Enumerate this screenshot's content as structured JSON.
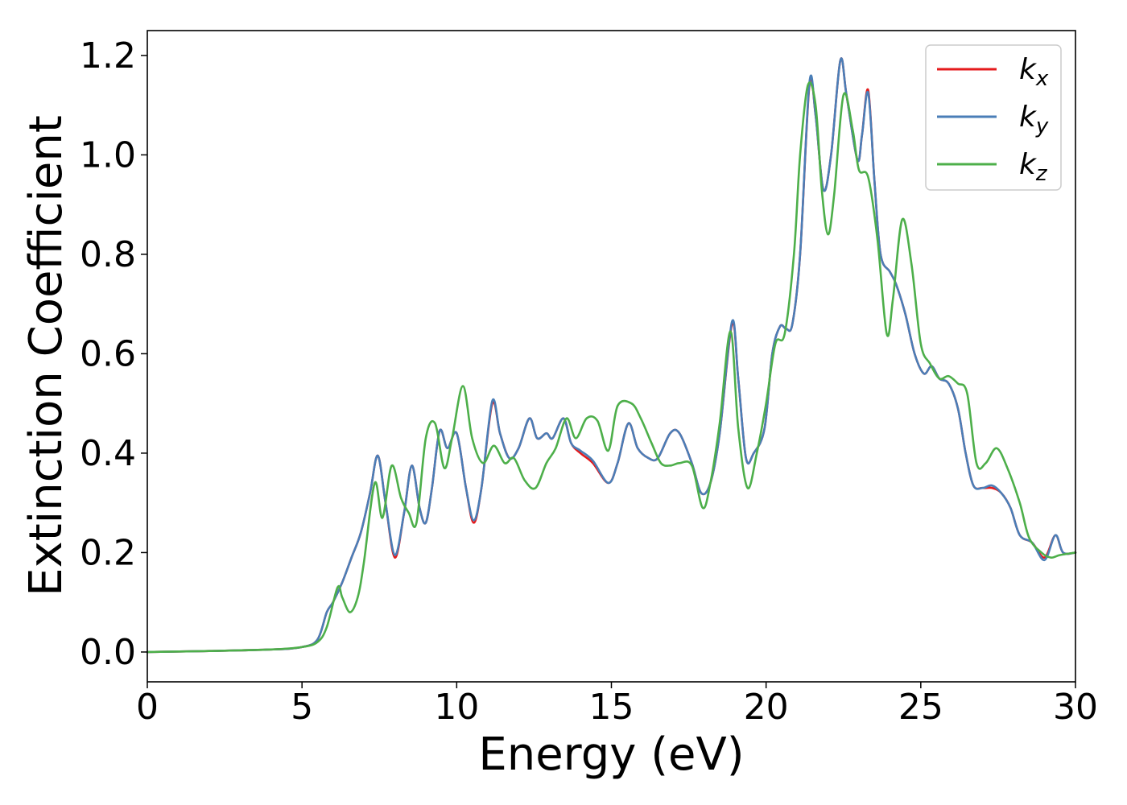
{
  "chart_data": {
    "type": "line",
    "title": "",
    "xlabel": "Energy (eV)",
    "ylabel": "Extinction Coefficient",
    "xlim": [
      0,
      30
    ],
    "ylim": [
      -0.06,
      1.25
    ],
    "xticks": [
      0,
      5,
      10,
      15,
      20,
      25,
      30
    ],
    "xtick_labels": [
      "0",
      "5",
      "10",
      "15",
      "20",
      "25",
      "30"
    ],
    "yticks": [
      0.0,
      0.2,
      0.4,
      0.6,
      0.8,
      1.0,
      1.2
    ],
    "ytick_labels": [
      "0.0",
      "0.2",
      "0.4",
      "0.6",
      "0.8",
      "1.0",
      "1.2"
    ],
    "grid": false,
    "legend_position": "top-right",
    "series": [
      {
        "name": "kx",
        "label_base": "k",
        "label_sub": "x",
        "color": "#e41a1c",
        "x": [
          0,
          2,
          4,
          5,
          5.5,
          5.8,
          6.0,
          6.3,
          6.6,
          6.9,
          7.2,
          7.45,
          7.7,
          8.0,
          8.3,
          8.55,
          8.8,
          9.0,
          9.2,
          9.45,
          9.7,
          10.0,
          10.3,
          10.55,
          10.8,
          11.15,
          11.4,
          11.7,
          12.0,
          12.35,
          12.6,
          12.9,
          13.1,
          13.45,
          13.7,
          14.0,
          14.4,
          14.9,
          15.2,
          15.55,
          15.85,
          16.2,
          16.5,
          16.9,
          17.2,
          17.6,
          17.9,
          18.2,
          18.5,
          18.9,
          19.1,
          19.35,
          19.6,
          19.95,
          20.2,
          20.45,
          20.65,
          20.85,
          21.1,
          21.4,
          21.6,
          21.85,
          22.1,
          22.4,
          22.6,
          22.95,
          23.1,
          23.3,
          23.5,
          23.7,
          24.0,
          24.2,
          24.5,
          24.8,
          25.1,
          25.35,
          25.6,
          25.9,
          26.2,
          26.45,
          26.7,
          27.0,
          27.3,
          27.6,
          27.9,
          28.2,
          28.6,
          29.0,
          29.35,
          29.6,
          30.0
        ],
        "y": [
          0.0,
          0.002,
          0.005,
          0.01,
          0.025,
          0.08,
          0.1,
          0.14,
          0.19,
          0.24,
          0.32,
          0.395,
          0.3,
          0.19,
          0.28,
          0.375,
          0.29,
          0.26,
          0.33,
          0.445,
          0.41,
          0.44,
          0.33,
          0.26,
          0.33,
          0.5,
          0.44,
          0.39,
          0.41,
          0.47,
          0.43,
          0.44,
          0.43,
          0.47,
          0.42,
          0.4,
          0.38,
          0.34,
          0.38,
          0.46,
          0.41,
          0.39,
          0.39,
          0.44,
          0.44,
          0.38,
          0.32,
          0.34,
          0.44,
          0.66,
          0.55,
          0.39,
          0.4,
          0.45,
          0.6,
          0.655,
          0.65,
          0.66,
          0.8,
          1.14,
          1.08,
          0.93,
          1.0,
          1.19,
          1.12,
          0.99,
          1.04,
          1.13,
          0.95,
          0.8,
          0.765,
          0.74,
          0.68,
          0.6,
          0.56,
          0.575,
          0.55,
          0.54,
          0.49,
          0.4,
          0.335,
          0.33,
          0.33,
          0.32,
          0.29,
          0.235,
          0.22,
          0.19,
          0.235,
          0.2,
          0.2
        ]
      },
      {
        "name": "ky",
        "label_base": "k",
        "label_sub": "y",
        "color": "#4a7eb7",
        "x": [
          0,
          2,
          4,
          5,
          5.5,
          5.8,
          6.0,
          6.3,
          6.6,
          6.9,
          7.2,
          7.45,
          7.7,
          8.0,
          8.3,
          8.55,
          8.8,
          9.0,
          9.2,
          9.45,
          9.7,
          10.0,
          10.3,
          10.55,
          10.8,
          11.15,
          11.4,
          11.7,
          12.0,
          12.35,
          12.6,
          12.9,
          13.1,
          13.45,
          13.7,
          14.0,
          14.4,
          14.9,
          15.2,
          15.55,
          15.85,
          16.2,
          16.5,
          16.9,
          17.2,
          17.6,
          17.9,
          18.2,
          18.5,
          18.9,
          19.1,
          19.35,
          19.6,
          19.95,
          20.2,
          20.45,
          20.65,
          20.85,
          21.1,
          21.4,
          21.6,
          21.85,
          22.1,
          22.4,
          22.6,
          22.95,
          23.1,
          23.3,
          23.5,
          23.7,
          24.0,
          24.2,
          24.5,
          24.8,
          25.1,
          25.35,
          25.6,
          25.9,
          26.2,
          26.45,
          26.7,
          27.0,
          27.3,
          27.6,
          27.9,
          28.2,
          28.6,
          29.0,
          29.35,
          29.6,
          30.0
        ],
        "y": [
          0.0,
          0.002,
          0.005,
          0.01,
          0.025,
          0.08,
          0.1,
          0.14,
          0.19,
          0.24,
          0.32,
          0.395,
          0.3,
          0.195,
          0.28,
          0.375,
          0.29,
          0.26,
          0.33,
          0.445,
          0.41,
          0.44,
          0.33,
          0.265,
          0.33,
          0.505,
          0.44,
          0.39,
          0.41,
          0.47,
          0.43,
          0.44,
          0.43,
          0.47,
          0.42,
          0.405,
          0.385,
          0.34,
          0.38,
          0.46,
          0.41,
          0.39,
          0.39,
          0.44,
          0.44,
          0.38,
          0.32,
          0.34,
          0.44,
          0.665,
          0.55,
          0.39,
          0.4,
          0.45,
          0.6,
          0.655,
          0.65,
          0.66,
          0.8,
          1.145,
          1.08,
          0.93,
          1.0,
          1.19,
          1.12,
          0.99,
          1.04,
          1.125,
          0.95,
          0.8,
          0.765,
          0.74,
          0.68,
          0.6,
          0.56,
          0.575,
          0.55,
          0.54,
          0.49,
          0.4,
          0.335,
          0.33,
          0.335,
          0.32,
          0.29,
          0.235,
          0.22,
          0.185,
          0.235,
          0.2,
          0.2
        ]
      },
      {
        "name": "kz",
        "label_base": "k",
        "label_sub": "z",
        "color": "#4daf4a",
        "x": [
          0,
          2,
          4,
          5,
          5.5,
          5.8,
          6.15,
          6.3,
          6.55,
          6.8,
          7.0,
          7.35,
          7.6,
          7.9,
          8.2,
          8.45,
          8.7,
          9.0,
          9.3,
          9.6,
          9.85,
          10.2,
          10.5,
          10.85,
          11.2,
          11.55,
          11.85,
          12.2,
          12.55,
          12.9,
          13.2,
          13.55,
          13.85,
          14.2,
          14.55,
          14.9,
          15.2,
          15.65,
          15.95,
          16.3,
          16.6,
          16.9,
          17.2,
          17.6,
          17.95,
          18.2,
          18.5,
          18.85,
          19.1,
          19.4,
          19.7,
          20.0,
          20.3,
          20.6,
          20.9,
          21.1,
          21.35,
          21.6,
          21.8,
          22.0,
          22.2,
          22.5,
          22.8,
          23.0,
          23.3,
          23.6,
          23.9,
          24.1,
          24.4,
          24.7,
          25.0,
          25.3,
          25.6,
          25.9,
          26.2,
          26.5,
          26.8,
          27.1,
          27.45,
          27.8,
          28.2,
          28.5,
          28.9,
          29.2,
          29.5,
          30.0
        ],
        "y": [
          0.0,
          0.002,
          0.005,
          0.01,
          0.02,
          0.05,
          0.13,
          0.11,
          0.08,
          0.11,
          0.18,
          0.34,
          0.27,
          0.375,
          0.31,
          0.28,
          0.26,
          0.43,
          0.46,
          0.37,
          0.43,
          0.535,
          0.43,
          0.38,
          0.415,
          0.38,
          0.39,
          0.345,
          0.33,
          0.38,
          0.41,
          0.47,
          0.43,
          0.47,
          0.465,
          0.405,
          0.495,
          0.5,
          0.47,
          0.42,
          0.38,
          0.375,
          0.38,
          0.375,
          0.29,
          0.34,
          0.46,
          0.645,
          0.45,
          0.33,
          0.4,
          0.5,
          0.62,
          0.64,
          0.8,
          1.0,
          1.14,
          1.1,
          0.93,
          0.84,
          0.92,
          1.12,
          1.05,
          0.97,
          0.955,
          0.83,
          0.64,
          0.71,
          0.87,
          0.78,
          0.62,
          0.58,
          0.55,
          0.555,
          0.54,
          0.52,
          0.38,
          0.38,
          0.41,
          0.37,
          0.3,
          0.23,
          0.2,
          0.19,
          0.195,
          0.2
        ]
      }
    ]
  }
}
